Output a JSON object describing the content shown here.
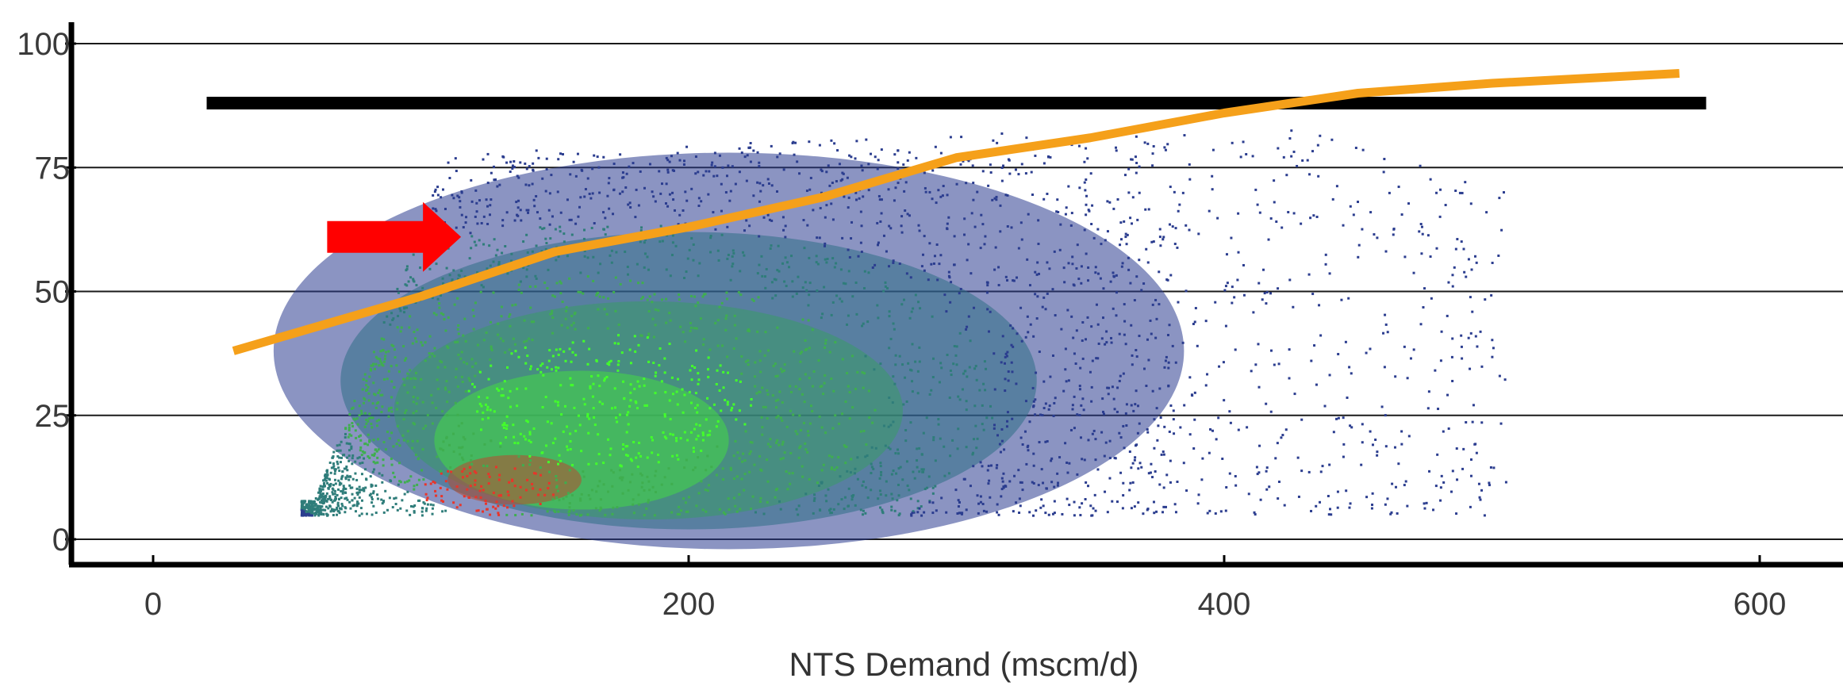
{
  "chart_data": {
    "type": "scatter",
    "title": "",
    "xlabel": "NTS Demand (mscm/d)",
    "ylabel": "",
    "xlim": [
      -30,
      625
    ],
    "ylim": [
      -6,
      100
    ],
    "x_ticks": [
      0,
      200,
      400,
      600
    ],
    "x_tick_labels": [
      "0",
      "200",
      "400",
      "600"
    ],
    "y_ticks": [
      0,
      25,
      50,
      75,
      100
    ],
    "y_tick_labels": [
      "0",
      "25",
      "50",
      "75",
      "100"
    ],
    "grid": "horizontal",
    "density_cloud": {
      "description_values": "dense point cloud",
      "x_min": 55,
      "x_max": 500,
      "y_min": 5,
      "y_max": 84,
      "peak": {
        "x": 125,
        "y": 10
      },
      "colors": {
        "low": "#2b3d8f",
        "mid": "#3fae4f",
        "high": "#43ff2a",
        "peak": "#e8352a"
      }
    },
    "series": [
      {
        "type": "line",
        "color": "#f5a01a",
        "x": [
          30,
          100,
          150,
          200,
          250,
          300,
          350,
          400,
          450,
          500,
          570
        ],
        "y": [
          38,
          49,
          58,
          63,
          69,
          77,
          81,
          86,
          90,
          92,
          94
        ]
      }
    ],
    "annotations": [
      {
        "type": "hline",
        "x_start": 20,
        "x_end": 580,
        "y": 88,
        "color": "#000000"
      },
      {
        "type": "arrow",
        "direction": "right",
        "x_start": 65,
        "x_end": 115,
        "y": 61,
        "color": "#ff0000"
      }
    ]
  }
}
